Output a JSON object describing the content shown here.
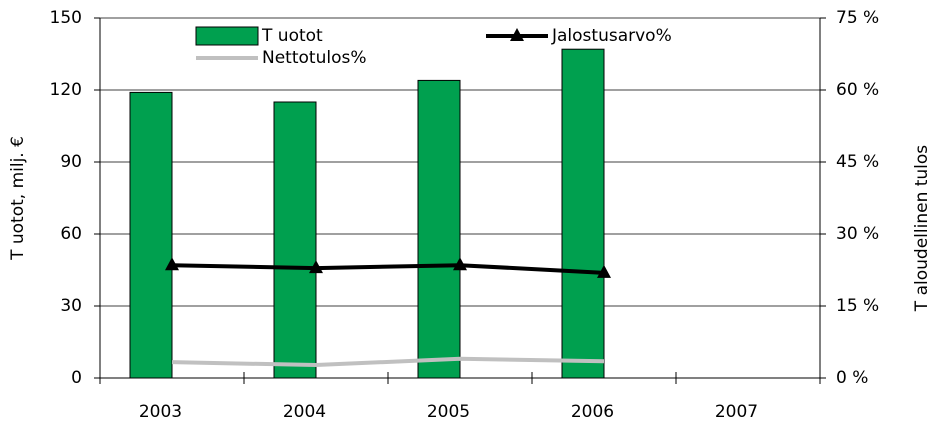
{
  "chart_data": {
    "type": "bar",
    "categories": [
      "2003",
      "2004",
      "2005",
      "2006",
      "2007"
    ],
    "y_label": "T uotot, milj. €",
    "y2_label": "T aloudellinen tulos",
    "ylim": [
      0,
      150
    ],
    "yticks": [
      0,
      30,
      60,
      90,
      120,
      150
    ],
    "y2lim": [
      0,
      75
    ],
    "y2ticks": [
      {
        "value": 0,
        "label": "0 %"
      },
      {
        "value": 15,
        "label": "15 %"
      },
      {
        "value": 30,
        "label": "30 %"
      },
      {
        "value": 45,
        "label": "45 %"
      },
      {
        "value": 60,
        "label": "60 %"
      },
      {
        "value": 75,
        "label": "75 %"
      }
    ],
    "grid": true,
    "series": [
      {
        "name": "T uotot",
        "type": "bar",
        "color": "#00a04f",
        "values": [
          119,
          115,
          124,
          137,
          null
        ]
      },
      {
        "name": "Jalostusarvo%",
        "type": "line",
        "marker": "triangle",
        "axis": "y2",
        "color": "#000000",
        "values": [
          23.5,
          22.9,
          23.5,
          21.9,
          null
        ]
      },
      {
        "name": "Nettotulos%",
        "type": "line",
        "axis": "y2",
        "color": "#c0c0c0",
        "values": [
          3.3,
          2.7,
          4.0,
          3.5,
          null
        ]
      }
    ]
  }
}
